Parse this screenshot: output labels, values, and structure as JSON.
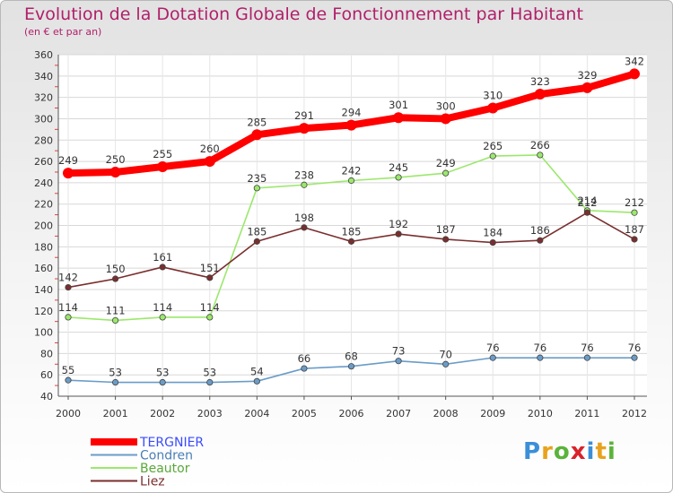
{
  "header": {
    "title": "Evolution de la Dotation Globale de Fonctionnement par Habitant",
    "subtitle": "(en € et par an)"
  },
  "logo": {
    "letters": [
      "P",
      "r",
      "o",
      "x",
      "i",
      "t",
      "i"
    ],
    "colors": [
      "#3a8fd8",
      "#e9a21e",
      "#5bb33a",
      "#d9222a",
      "#3a8fd8",
      "#e9a21e",
      "#5bb33a"
    ]
  },
  "chart_data": {
    "type": "line",
    "title": "Evolution de la Dotation Globale de Fonctionnement par Habitant",
    "subtitle": "(en € et par an)",
    "xlabel": "",
    "ylabel": "",
    "ylim": [
      40,
      360
    ],
    "yticks": [
      40,
      60,
      80,
      100,
      120,
      140,
      160,
      180,
      200,
      220,
      240,
      260,
      280,
      300,
      320,
      340,
      360
    ],
    "grid": true,
    "legend_position": "bottom-left",
    "x": [
      "2000",
      "2001",
      "2002",
      "2003",
      "2004",
      "2005",
      "2006",
      "2007",
      "2008",
      "2009",
      "2010",
      "2011",
      "2012"
    ],
    "series": [
      {
        "name": "TERGNIER",
        "color": "#ff0000",
        "legend_text_color": "#3b4cff",
        "weight": "thick",
        "values": [
          249,
          250,
          255,
          260,
          285,
          291,
          294,
          301,
          300,
          310,
          323,
          329,
          342
        ]
      },
      {
        "name": "Condren",
        "color": "#6a9cc8",
        "legend_text_color": "#4a7fb5",
        "weight": "thin",
        "values": [
          55,
          53,
          53,
          53,
          54,
          66,
          68,
          73,
          70,
          76,
          76,
          76,
          76
        ]
      },
      {
        "name": "Beautor",
        "color": "#9be86c",
        "legend_text_color": "#5aa83a",
        "weight": "thin",
        "values": [
          114,
          111,
          114,
          114,
          235,
          238,
          242,
          245,
          249,
          265,
          266,
          214,
          212
        ]
      },
      {
        "name": "Liez",
        "color": "#7a2e2e",
        "legend_text_color": "#7a2e2e",
        "weight": "thin",
        "values": [
          142,
          150,
          161,
          151,
          185,
          198,
          185,
          192,
          187,
          184,
          186,
          212,
          187
        ]
      }
    ]
  }
}
